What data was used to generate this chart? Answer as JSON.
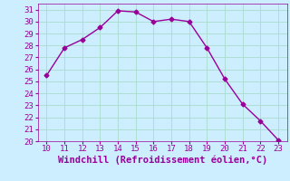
{
  "x": [
    10,
    11,
    12,
    13,
    14,
    15,
    16,
    17,
    18,
    19,
    20,
    21,
    22,
    23
  ],
  "y": [
    25.5,
    27.8,
    28.5,
    29.5,
    30.9,
    30.8,
    30.0,
    30.2,
    30.0,
    27.8,
    25.2,
    23.1,
    21.7,
    20.1
  ],
  "line_color": "#990099",
  "marker": "D",
  "marker_size": 2.5,
  "linewidth": 1.0,
  "xlim": [
    9.5,
    23.5
  ],
  "ylim": [
    20,
    31.5
  ],
  "xticks": [
    10,
    11,
    12,
    13,
    14,
    15,
    16,
    17,
    18,
    19,
    20,
    21,
    22,
    23
  ],
  "yticks": [
    20,
    21,
    22,
    23,
    24,
    25,
    26,
    27,
    28,
    29,
    30,
    31
  ],
  "xlabel": "Windchill (Refroidissement éolien,°C)",
  "background_color": "#cceeff",
  "grid_color": "#aaddcc",
  "tick_color": "#990099",
  "label_color": "#990099",
  "tick_fontsize": 6.5,
  "xlabel_fontsize": 7.5
}
